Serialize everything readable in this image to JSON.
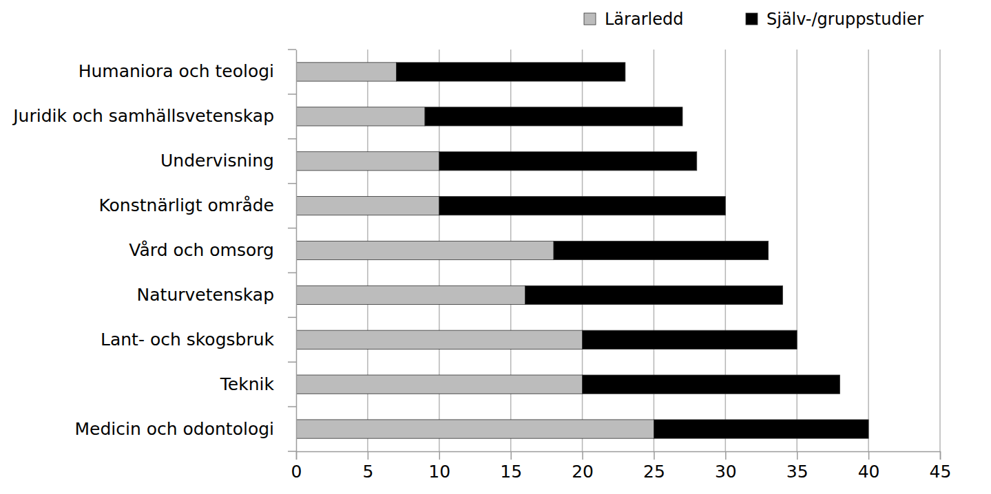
{
  "chart_data": {
    "type": "bar",
    "orientation": "horizontal",
    "stacked": true,
    "grid": true,
    "legend": "top-right",
    "categories": [
      "Humaniora och teologi",
      "Juridik och samhällsvetenskap",
      "Undervisning",
      "Konstnärligt område",
      "Vård och omsorg",
      "Naturvetenskap",
      "Lant- och skogsbruk",
      "Teknik",
      "Medicin och odontologi"
    ],
    "series": [
      {
        "name": "Lärarledd",
        "color": "#bcbcbc",
        "values": [
          7,
          9,
          10,
          10,
          18,
          16,
          20,
          20,
          25
        ]
      },
      {
        "name": "Själv-/gruppstudier",
        "color": "#000000",
        "values": [
          16,
          18,
          18,
          20,
          15,
          18,
          15,
          18,
          15
        ]
      }
    ],
    "xlim": [
      0,
      45
    ],
    "xticks": [
      0,
      5,
      10,
      15,
      20,
      25,
      30,
      35,
      40,
      45
    ]
  }
}
